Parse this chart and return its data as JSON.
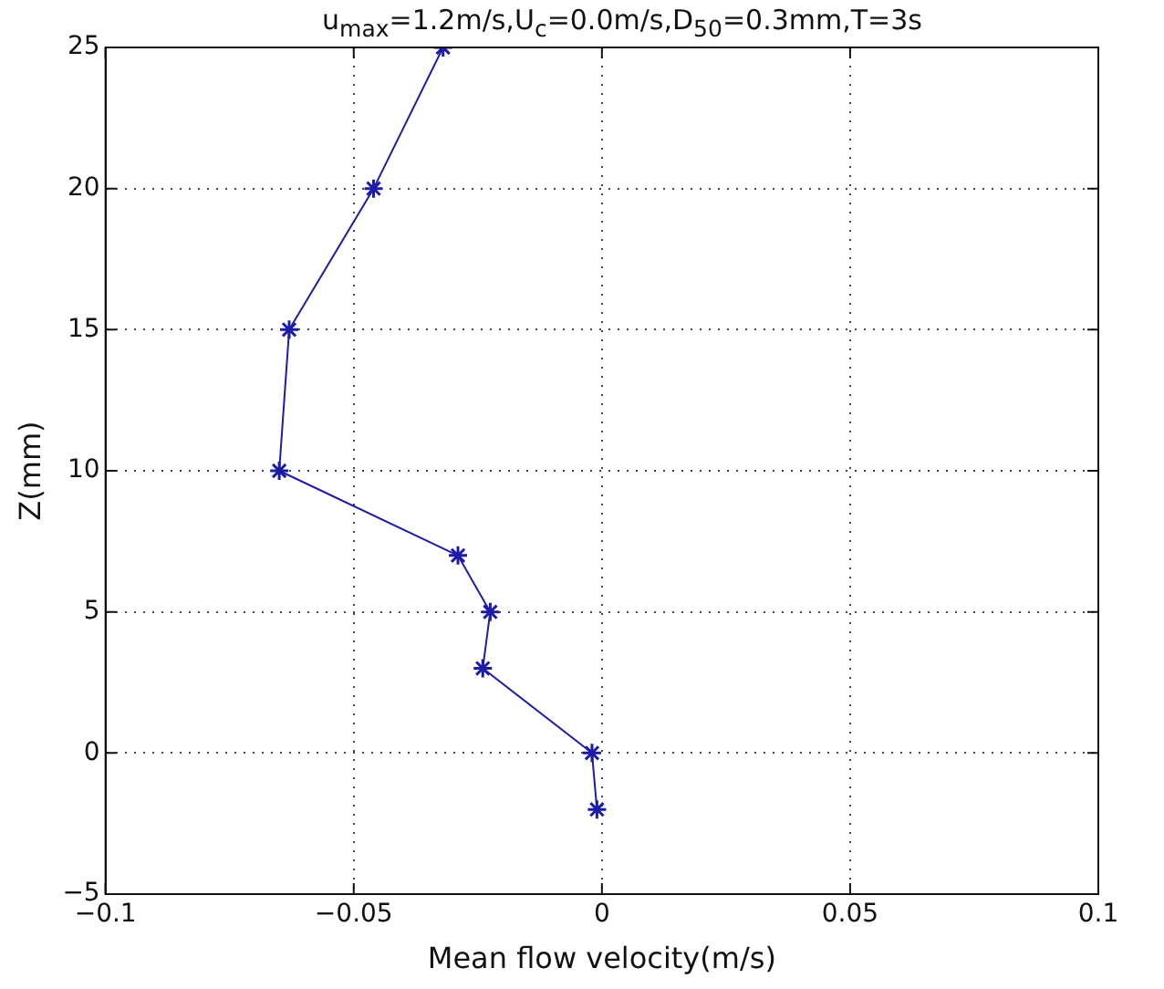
{
  "chart_data": {
    "type": "line",
    "title": "u$_{max}$=1.2m/s,U$_{c}$=0.0m/s,D$_{50}$=0.3mm,T=3s",
    "xlabel": "Mean flow velocity(m/s)",
    "ylabel": "Z(mm)",
    "series": [
      {
        "color": "#1c1ca8",
        "x": [
          -0.032,
          -0.046,
          -0.063,
          -0.065,
          -0.029,
          -0.0225,
          -0.024,
          -0.002,
          -0.001
        ],
        "values": [
          25,
          20,
          15,
          10,
          7,
          5,
          3,
          0,
          -2
        ]
      }
    ],
    "xlim": [
      -0.1,
      0.1
    ],
    "xticks": [
      -0.1,
      -0.05,
      0,
      0.05,
      0.1
    ],
    "ylim": [
      -5,
      25
    ],
    "yticks": [
      -5,
      0,
      5,
      10,
      15,
      20,
      25
    ],
    "grid": true,
    "marker": "cross",
    "line_style": "solid",
    "legend": false
  }
}
